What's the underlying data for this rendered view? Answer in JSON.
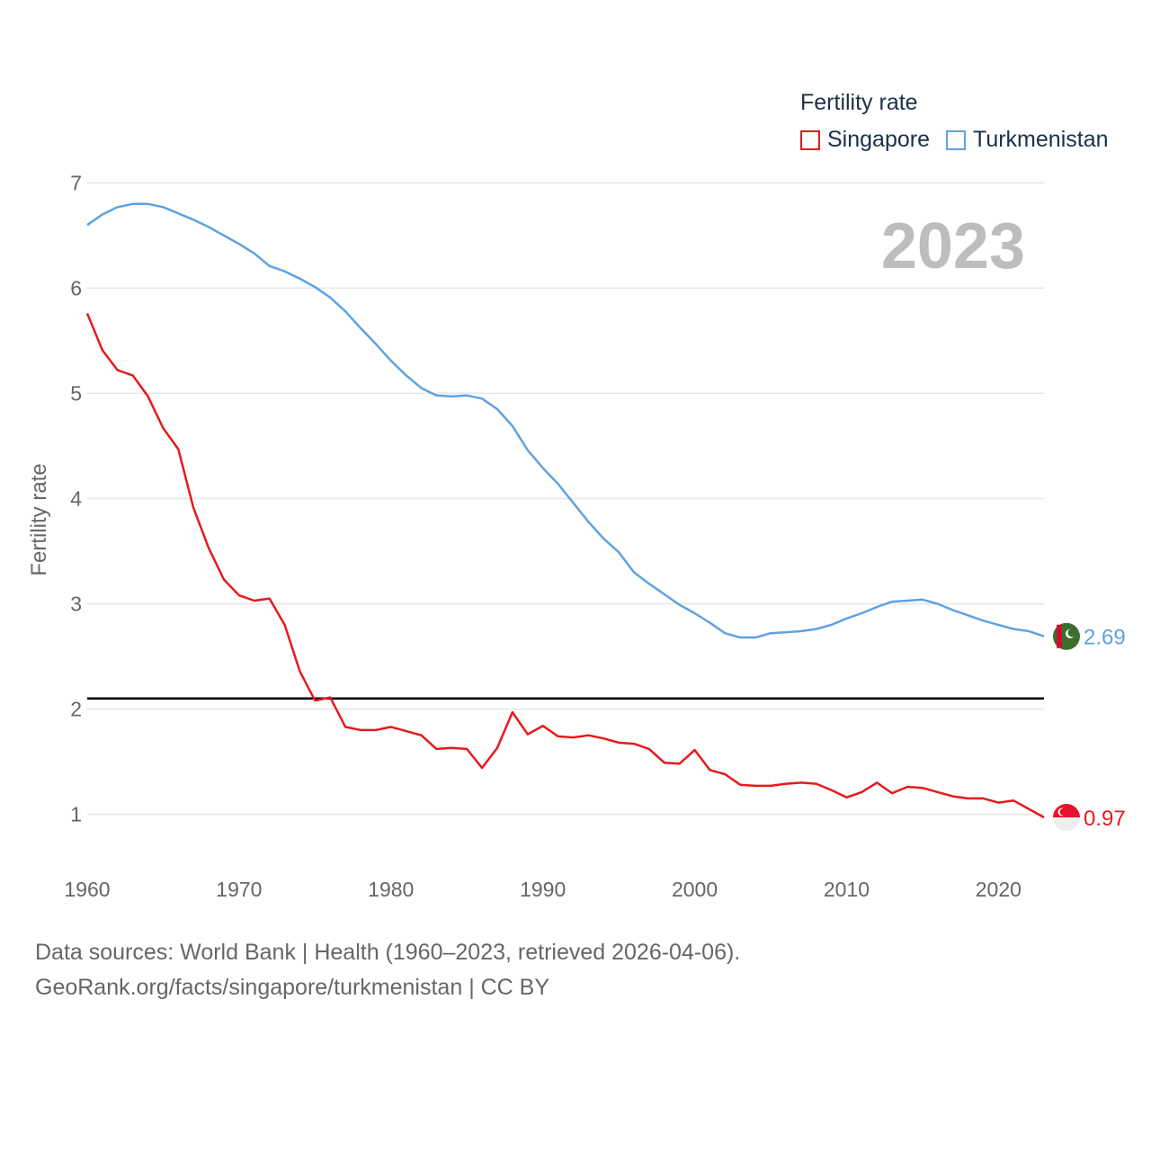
{
  "legend": {
    "title": "Fertility rate",
    "items": [
      {
        "label": "Singapore",
        "color": "#e8191c"
      },
      {
        "label": "Turkmenistan",
        "color": "#5fa2e1"
      }
    ]
  },
  "source": {
    "line1": "Data sources: World Bank | Health (1960–2023, retrieved 2026-04-06).",
    "line2": "GeoRank.org/facts/singapore/turkmenistan | CC BY"
  },
  "chart_data": {
    "type": "line",
    "title": "Fertility rate",
    "year_label": "2023",
    "xlabel": "",
    "ylabel": "Fertility rate",
    "xlim": [
      1960,
      2023
    ],
    "ylim": [
      0.5,
      7.2
    ],
    "x_ticks": [
      1960,
      1970,
      1980,
      1990,
      2000,
      2010,
      2020
    ],
    "y_ticks": [
      1,
      2,
      3,
      4,
      5,
      6,
      7
    ],
    "grid": true,
    "reference_line": {
      "value": 2.1,
      "color": "#000000"
    },
    "x": [
      1960,
      1961,
      1962,
      1963,
      1964,
      1965,
      1966,
      1967,
      1968,
      1969,
      1970,
      1971,
      1972,
      1973,
      1974,
      1975,
      1976,
      1977,
      1978,
      1979,
      1980,
      1981,
      1982,
      1983,
      1984,
      1985,
      1986,
      1987,
      1988,
      1989,
      1990,
      1991,
      1992,
      1993,
      1994,
      1995,
      1996,
      1997,
      1998,
      1999,
      2000,
      2001,
      2002,
      2003,
      2004,
      2005,
      2006,
      2007,
      2008,
      2009,
      2010,
      2011,
      2012,
      2013,
      2014,
      2015,
      2016,
      2017,
      2018,
      2019,
      2020,
      2021,
      2022,
      2023
    ],
    "series": [
      {
        "name": "Singapore",
        "color": "#e8191c",
        "end_label": "0.97",
        "values": [
          5.76,
          5.41,
          5.22,
          5.17,
          4.97,
          4.67,
          4.47,
          3.91,
          3.53,
          3.23,
          3.08,
          3.03,
          3.05,
          2.8,
          2.36,
          2.08,
          2.11,
          1.83,
          1.8,
          1.8,
          1.83,
          1.79,
          1.75,
          1.62,
          1.63,
          1.62,
          1.44,
          1.63,
          1.97,
          1.76,
          1.84,
          1.74,
          1.73,
          1.75,
          1.72,
          1.68,
          1.67,
          1.62,
          1.49,
          1.48,
          1.61,
          1.42,
          1.38,
          1.28,
          1.27,
          1.27,
          1.29,
          1.3,
          1.29,
          1.23,
          1.16,
          1.21,
          1.3,
          1.2,
          1.26,
          1.25,
          1.21,
          1.17,
          1.15,
          1.15,
          1.11,
          1.13,
          1.05,
          0.97
        ]
      },
      {
        "name": "Turkmenistan",
        "color": "#5fa2e1",
        "end_label": "2.69",
        "values": [
          6.6,
          6.7,
          6.77,
          6.8,
          6.8,
          6.77,
          6.71,
          6.65,
          6.58,
          6.5,
          6.42,
          6.33,
          6.21,
          6.16,
          6.09,
          6.01,
          5.91,
          5.78,
          5.62,
          5.47,
          5.31,
          5.17,
          5.05,
          4.98,
          4.97,
          4.98,
          4.95,
          4.85,
          4.69,
          4.46,
          4.29,
          4.14,
          3.96,
          3.78,
          3.62,
          3.49,
          3.3,
          3.19,
          3.09,
          2.99,
          2.91,
          2.82,
          2.72,
          2.68,
          2.68,
          2.72,
          2.73,
          2.74,
          2.76,
          2.8,
          2.86,
          2.91,
          2.97,
          3.02,
          3.03,
          3.04,
          3.0,
          2.94,
          2.89,
          2.84,
          2.8,
          2.76,
          2.74,
          2.69
        ]
      }
    ]
  }
}
